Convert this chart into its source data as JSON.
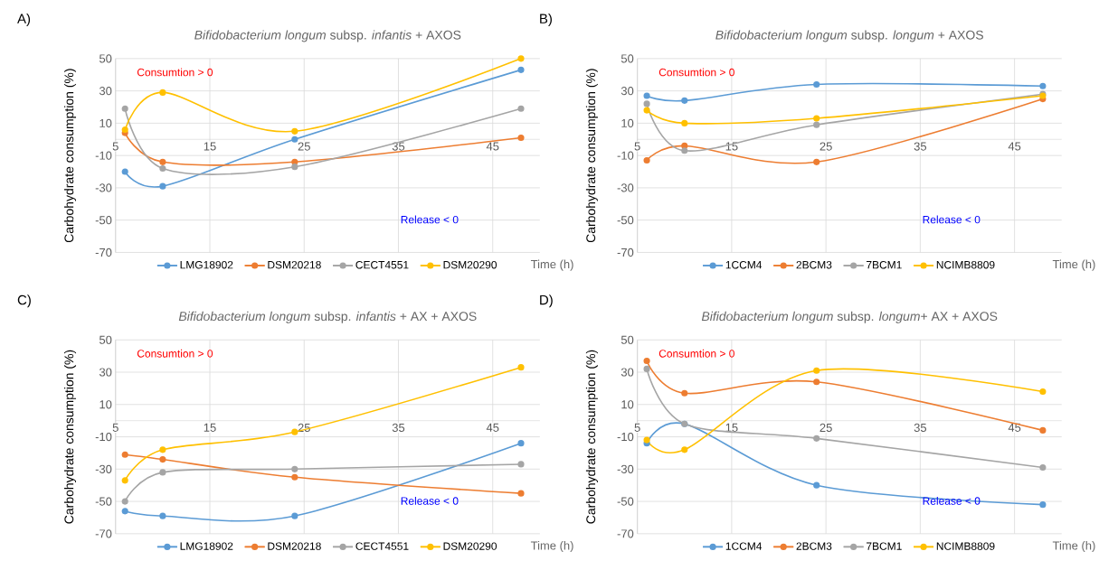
{
  "chart_data": [
    {
      "type": "line",
      "title": "*Bifidobacterium longum* subsp. *infantis* + AXOS",
      "xlabel": "Time (h)",
      "ylabel": "Carbohydrate consumption (%)",
      "annotations": [
        "A)",
        "Consumtion > 0",
        "Release < 0"
      ],
      "x": [
        6,
        10,
        24,
        48
      ],
      "xlim": [
        5,
        50
      ],
      "xticks": [
        5,
        15,
        25,
        35,
        45
      ],
      "ylim": [
        -70,
        50
      ],
      "yticks": [
        -70,
        -50,
        -30,
        -10,
        10,
        30,
        50
      ],
      "grid": true,
      "legend": "bottom",
      "marker": "circle",
      "series": [
        {
          "name": "LMG18902",
          "color": "#5b9bd5",
          "values": [
            -20,
            -29,
            0,
            43
          ]
        },
        {
          "name": "DSM20218",
          "color": "#ed7d31",
          "values": [
            4,
            -14,
            -14,
            1
          ]
        },
        {
          "name": "CECT4551",
          "color": "#a5a5a5",
          "values": [
            19,
            -18,
            -17,
            19
          ]
        },
        {
          "name": "DSM20290",
          "color": "#ffc000",
          "values": [
            6,
            29,
            5,
            50
          ]
        }
      ]
    },
    {
      "type": "line",
      "title": "*Bifidobacterium longum* subsp. *longum* + AXOS",
      "xlabel": "Time (h)",
      "ylabel": "Carbohydrate consumption (%)",
      "annotations": [
        "B)",
        "Consumtion > 0",
        "Release < 0"
      ],
      "x": [
        6,
        10,
        24,
        48
      ],
      "xlim": [
        5,
        50
      ],
      "xticks": [
        5,
        15,
        25,
        35,
        45
      ],
      "ylim": [
        -70,
        50
      ],
      "yticks": [
        -70,
        -50,
        -30,
        -10,
        10,
        30,
        50
      ],
      "grid": true,
      "legend": "bottom",
      "marker": "circle",
      "series": [
        {
          "name": "1CCM4",
          "color": "#5b9bd5",
          "values": [
            27,
            24,
            34,
            33
          ]
        },
        {
          "name": "2BCM3",
          "color": "#ed7d31",
          "values": [
            -13,
            -4,
            -14,
            25
          ]
        },
        {
          "name": "7BCM1",
          "color": "#a5a5a5",
          "values": [
            22,
            -7,
            9,
            28
          ]
        },
        {
          "name": "NCIMB8809",
          "color": "#ffc000",
          "values": [
            18,
            10,
            13,
            27
          ]
        }
      ]
    },
    {
      "type": "line",
      "title": "*Bifidobacterium longum* subsp. *infantis* + AX + AXOS",
      "xlabel": "Time (h)",
      "ylabel": "Carbohydrate consumption (%)",
      "annotations": [
        "C)",
        "Consumtion > 0",
        "Release < 0"
      ],
      "x": [
        6,
        10,
        24,
        48
      ],
      "xlim": [
        5,
        50
      ],
      "xticks": [
        5,
        15,
        25,
        35,
        45
      ],
      "ylim": [
        -70,
        50
      ],
      "yticks": [
        -70,
        -50,
        -30,
        -10,
        10,
        30,
        50
      ],
      "grid": true,
      "legend": "bottom",
      "marker": "circle",
      "series": [
        {
          "name": "LMG18902",
          "color": "#5b9bd5",
          "values": [
            -56,
            -59,
            -59,
            -14
          ]
        },
        {
          "name": "DSM20218",
          "color": "#ed7d31",
          "values": [
            -21,
            -24,
            -35,
            -45
          ]
        },
        {
          "name": "CECT4551",
          "color": "#a5a5a5",
          "values": [
            -50,
            -32,
            -30,
            -27
          ]
        },
        {
          "name": "DSM20290",
          "color": "#ffc000",
          "values": [
            -37,
            -18,
            -7,
            33
          ]
        }
      ]
    },
    {
      "type": "line",
      "title": "*Bifidobacterium longum* subsp. *longum*+ AX + AXOS",
      "xlabel": "Time (h)",
      "ylabel": "Carbohydrate consumption (%)",
      "annotations": [
        "D)",
        "Consumtion > 0",
        "Release < 0"
      ],
      "x": [
        6,
        10,
        24,
        48
      ],
      "xlim": [
        5,
        50
      ],
      "xticks": [
        5,
        15,
        25,
        35,
        45
      ],
      "ylim": [
        -70,
        50
      ],
      "yticks": [
        -70,
        -50,
        -30,
        -10,
        10,
        30,
        50
      ],
      "grid": true,
      "legend": "bottom",
      "marker": "circle",
      "series": [
        {
          "name": "1CCM4",
          "color": "#5b9bd5",
          "values": [
            -14,
            -2,
            -40,
            -52
          ]
        },
        {
          "name": "2BCM3",
          "color": "#ed7d31",
          "values": [
            37,
            17,
            24,
            -6
          ]
        },
        {
          "name": "7BCM1",
          "color": "#a5a5a5",
          "values": [
            32,
            -2,
            -11,
            -29
          ]
        },
        {
          "name": "NCIMB8809",
          "color": "#ffc000",
          "values": [
            -12,
            -18,
            31,
            18
          ]
        }
      ]
    }
  ]
}
